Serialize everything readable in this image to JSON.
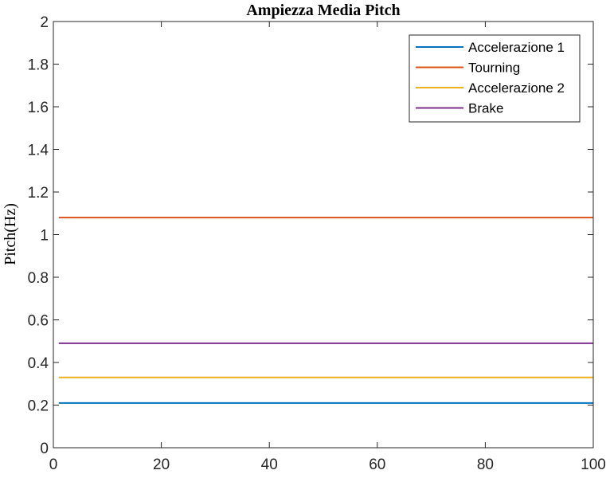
{
  "chart_data": {
    "type": "line",
    "title": "Ampiezza Media Pitch",
    "xlabel": "",
    "ylabel": "Pitch(Hz)",
    "xlim": [
      0,
      100
    ],
    "ylim": [
      0,
      2
    ],
    "x_ticks": [
      0,
      20,
      40,
      60,
      80,
      100
    ],
    "x_tick_labels": [
      "0",
      "20",
      "40",
      "60",
      "80",
      "100"
    ],
    "y_ticks": [
      0,
      0.2,
      0.4,
      0.6,
      0.8,
      1,
      1.2,
      1.4,
      1.6,
      1.8,
      2
    ],
    "y_tick_labels": [
      "0",
      "0.2",
      "0.4",
      "0.6",
      "0.8",
      "1",
      "1.2",
      "1.4",
      "1.6",
      "1.8",
      "2"
    ],
    "grid": false,
    "legend_position": "top-right",
    "series": [
      {
        "name": "Accelerazione 1",
        "color": "#0072BD",
        "x": [
          1,
          100
        ],
        "y": [
          0.21,
          0.21
        ]
      },
      {
        "name": "Tourning",
        "color": "#D95319",
        "x": [
          1,
          100
        ],
        "y": [
          1.08,
          1.08
        ]
      },
      {
        "name": "Accelerazione 2",
        "color": "#EDB120",
        "x": [
          1,
          100
        ],
        "y": [
          0.33,
          0.33
        ]
      },
      {
        "name": "Brake",
        "color": "#7E2F8E",
        "x": [
          1,
          100
        ],
        "y": [
          0.49,
          0.49
        ]
      }
    ]
  }
}
